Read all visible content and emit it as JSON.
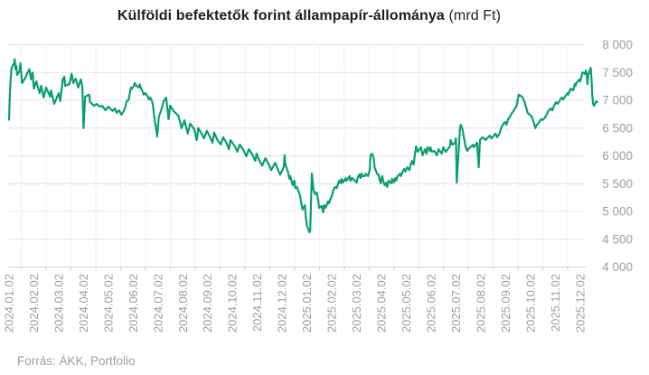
{
  "title": {
    "main": "Külföldi befektetők forint állampapír-állománya",
    "suffix": "(mrd Ft)"
  },
  "footer": {
    "source": "Forrás: ÁKK, Portfolio"
  },
  "chart_data": {
    "type": "line",
    "title": "Külföldi befektetők forint állampapír-állománya (mrd Ft)",
    "xlabel": "",
    "ylabel": "mrd Ft",
    "legend": false,
    "grid": true,
    "ylim": [
      4000,
      8000
    ],
    "y_ticks": [
      4000,
      4500,
      5000,
      5500,
      6000,
      6500,
      7000,
      7500,
      8000
    ],
    "y_tick_labels": [
      "4 000",
      "4 500",
      "5 000",
      "5 500",
      "6 000",
      "6 500",
      "7 000",
      "7 500",
      "8 000"
    ],
    "x_labels": [
      "2024.01.02",
      "2024.02.02",
      "2024.03.02",
      "2024.04.02",
      "2024.05.02",
      "2024.06.02",
      "2024.07.02",
      "2024.08.02",
      "2024.09.02",
      "2024.10.02",
      "2024.11.02",
      "2024.12.02",
      "2025.01.02",
      "2025.02.02",
      "2025.03.02",
      "2025.04.02",
      "2025.05.02",
      "2025.06.02",
      "2025.07.02",
      "2025.08.02",
      "2025.09.02",
      "2025.10.02",
      "2025.11.02",
      "2025.12.02"
    ],
    "colors": {
      "line": "#0aa06a",
      "grid": "#e4e4e4",
      "vgrid": "#f1f1f1",
      "axis": "#cfcfcf",
      "axis_label": "#9e9e9e",
      "title": "#1f1f1f"
    },
    "points": [
      [
        "2024-01-02",
        6650
      ],
      [
        "2024-01-03",
        7100
      ],
      [
        "2024-01-04",
        7380
      ],
      [
        "2024-01-05",
        7580
      ],
      [
        "2024-01-08",
        7660
      ],
      [
        "2024-01-09",
        7740
      ],
      [
        "2024-01-10",
        7560
      ],
      [
        "2024-01-11",
        7620
      ],
      [
        "2024-01-12",
        7455
      ],
      [
        "2024-01-15",
        7530
      ],
      [
        "2024-01-16",
        7667
      ],
      [
        "2024-01-17",
        7490
      ],
      [
        "2024-01-18",
        7310
      ],
      [
        "2024-01-22",
        7400
      ],
      [
        "2024-01-24",
        7475
      ],
      [
        "2024-01-27",
        7560
      ],
      [
        "2024-01-29",
        7375
      ],
      [
        "2024-01-31",
        7500
      ],
      [
        "2024-02-02",
        7210
      ],
      [
        "2024-02-05",
        7340
      ],
      [
        "2024-02-09",
        7130
      ],
      [
        "2024-02-11",
        7260
      ],
      [
        "2024-02-14",
        7050
      ],
      [
        "2024-02-17",
        7230
      ],
      [
        "2024-02-22",
        7065
      ],
      [
        "2024-02-23",
        7175
      ],
      [
        "2024-02-27",
        6935
      ],
      [
        "2024-03-02",
        7130
      ],
      [
        "2024-03-04",
        6985
      ],
      [
        "2024-03-07",
        7375
      ],
      [
        "2024-03-09",
        7425
      ],
      [
        "2024-03-10",
        7260
      ],
      [
        "2024-03-15",
        7290
      ],
      [
        "2024-03-18",
        7475
      ],
      [
        "2024-03-20",
        7310
      ],
      [
        "2024-03-23",
        7390
      ],
      [
        "2024-03-26",
        7230
      ],
      [
        "2024-03-29",
        7375
      ],
      [
        "2024-03-31",
        7260
      ],
      [
        "2024-04-02",
        6500
      ],
      [
        "2024-04-04",
        7066
      ],
      [
        "2024-04-09",
        7100
      ],
      [
        "2024-04-10",
        6966
      ],
      [
        "2024-04-15",
        6901
      ],
      [
        "2024-04-18",
        6935
      ],
      [
        "2024-04-22",
        6885
      ],
      [
        "2024-04-25",
        6901
      ],
      [
        "2024-04-29",
        6820
      ],
      [
        "2024-05-02",
        6885
      ],
      [
        "2024-05-07",
        6808
      ],
      [
        "2024-05-10",
        6853
      ],
      [
        "2024-05-12",
        6775
      ],
      [
        "2024-05-15",
        6820
      ],
      [
        "2024-05-18",
        6742
      ],
      [
        "2024-05-21",
        6808
      ],
      [
        "2024-05-23",
        6885
      ],
      [
        "2024-05-24",
        6966
      ],
      [
        "2024-05-27",
        7017
      ],
      [
        "2024-05-29",
        7180
      ],
      [
        "2024-05-30",
        7230
      ],
      [
        "2024-05-31",
        7210
      ],
      [
        "2024-06-03",
        7260
      ],
      [
        "2024-06-04",
        7310
      ],
      [
        "2024-06-06",
        7260
      ],
      [
        "2024-06-09",
        7230
      ],
      [
        "2024-06-10",
        7290
      ],
      [
        "2024-06-12",
        7210
      ],
      [
        "2024-06-14",
        7147
      ],
      [
        "2024-06-15",
        7100
      ],
      [
        "2024-06-17",
        7130
      ],
      [
        "2024-06-20",
        7066
      ],
      [
        "2024-06-21",
        7017
      ],
      [
        "2024-06-23",
        7050
      ],
      [
        "2024-06-25",
        6985
      ],
      [
        "2024-06-26",
        6935
      ],
      [
        "2024-06-28",
        6690
      ],
      [
        "2024-07-01",
        6350
      ],
      [
        "2024-07-03",
        6700
      ],
      [
        "2024-07-06",
        6825
      ],
      [
        "2024-07-09",
        6985
      ],
      [
        "2024-07-12",
        7050
      ],
      [
        "2024-07-15",
        6660
      ],
      [
        "2024-07-17",
        6905
      ],
      [
        "2024-07-21",
        6808
      ],
      [
        "2024-07-27",
        6725
      ],
      [
        "2024-07-31",
        6500
      ],
      [
        "2024-08-04",
        6640
      ],
      [
        "2024-08-08",
        6400
      ],
      [
        "2024-08-11",
        6580
      ],
      [
        "2024-08-16",
        6480
      ],
      [
        "2024-08-19",
        6285
      ],
      [
        "2024-08-21",
        6500
      ],
      [
        "2024-08-25",
        6400
      ],
      [
        "2024-08-28",
        6315
      ],
      [
        "2024-09-01",
        6450
      ],
      [
        "2024-09-05",
        6335
      ],
      [
        "2024-09-08",
        6235
      ],
      [
        "2024-09-10",
        6420
      ],
      [
        "2024-09-14",
        6285
      ],
      [
        "2024-09-18",
        6205
      ],
      [
        "2024-09-21",
        6335
      ],
      [
        "2024-09-25",
        6235
      ],
      [
        "2024-09-28",
        6120
      ],
      [
        "2024-09-30",
        6285
      ],
      [
        "2024-10-05",
        6170
      ],
      [
        "2024-10-08",
        6075
      ],
      [
        "2024-10-11",
        6205
      ],
      [
        "2024-10-16",
        6090
      ],
      [
        "2024-10-19",
        5990
      ],
      [
        "2024-10-22",
        6120
      ],
      [
        "2024-10-27",
        6010
      ],
      [
        "2024-10-30",
        5910
      ],
      [
        "2024-11-01",
        6040
      ],
      [
        "2024-11-04",
        5930
      ],
      [
        "2024-11-08",
        5825
      ],
      [
        "2024-11-12",
        5960
      ],
      [
        "2024-11-16",
        5845
      ],
      [
        "2024-11-19",
        5745
      ],
      [
        "2024-11-24",
        5875
      ],
      [
        "2024-11-27",
        5765
      ],
      [
        "2024-11-30",
        5660
      ],
      [
        "2024-12-04",
        5795
      ],
      [
        "2024-12-05",
        6010
      ],
      [
        "2024-12-06",
        5840
      ],
      [
        "2024-12-09",
        5715
      ],
      [
        "2024-12-11",
        5585
      ],
      [
        "2024-12-12",
        5635
      ],
      [
        "2024-12-15",
        5470
      ],
      [
        "2024-12-17",
        5553
      ],
      [
        "2024-12-18",
        5420
      ],
      [
        "2024-12-20",
        5440
      ],
      [
        "2024-12-24",
        5280
      ],
      [
        "2024-12-25",
        5180
      ],
      [
        "2024-12-27",
        5035
      ],
      [
        "2024-12-30",
        5114
      ],
      [
        "2024-12-31",
        4900
      ],
      [
        "2025-01-02",
        4740
      ],
      [
        "2025-01-05",
        4626
      ],
      [
        "2025-01-06",
        4658
      ],
      [
        "2025-01-08",
        5683
      ],
      [
        "2025-01-10",
        5390
      ],
      [
        "2025-01-12",
        5310
      ],
      [
        "2025-01-14",
        5340
      ],
      [
        "2025-01-16",
        5180
      ],
      [
        "2025-01-17",
        5065
      ],
      [
        "2025-01-20",
        5097
      ],
      [
        "2025-01-22",
        4984
      ],
      [
        "2025-01-23",
        5114
      ],
      [
        "2025-01-25",
        5065
      ],
      [
        "2025-01-28",
        5180
      ],
      [
        "2025-01-29",
        5146
      ],
      [
        "2025-01-31",
        5227
      ],
      [
        "2025-02-02",
        5280
      ],
      [
        "2025-02-04",
        5390
      ],
      [
        "2025-02-06",
        5440
      ],
      [
        "2025-02-08",
        5420
      ],
      [
        "2025-02-09",
        5470
      ],
      [
        "2025-02-11",
        5553
      ],
      [
        "2025-02-13",
        5505
      ],
      [
        "2025-02-14",
        5585
      ],
      [
        "2025-02-16",
        5520
      ],
      [
        "2025-02-19",
        5602
      ],
      [
        "2025-02-20",
        5553
      ],
      [
        "2025-02-22",
        5585
      ],
      [
        "2025-02-24",
        5635
      ],
      [
        "2025-02-25",
        5553
      ],
      [
        "2025-02-27",
        5602
      ],
      [
        "2025-03-02",
        5520
      ],
      [
        "2025-03-03",
        5585
      ],
      [
        "2025-03-05",
        5667
      ],
      [
        "2025-03-07",
        5602
      ],
      [
        "2025-03-08",
        5683
      ],
      [
        "2025-03-09",
        5635
      ],
      [
        "2025-03-12",
        5635
      ],
      [
        "2025-03-13",
        5680
      ],
      [
        "2025-03-16",
        5635
      ],
      [
        "2025-03-18",
        5745
      ],
      [
        "2025-03-19",
        6010
      ],
      [
        "2025-03-21",
        6040
      ],
      [
        "2025-03-23",
        5960
      ],
      [
        "2025-03-24",
        5795
      ],
      [
        "2025-03-27",
        5680
      ],
      [
        "2025-03-29",
        5665
      ],
      [
        "2025-03-30",
        5585
      ],
      [
        "2025-04-01",
        5505
      ],
      [
        "2025-04-03",
        5635
      ],
      [
        "2025-04-04",
        5553
      ],
      [
        "2025-04-06",
        5470
      ],
      [
        "2025-04-08",
        5520
      ],
      [
        "2025-04-09",
        5440
      ],
      [
        "2025-04-11",
        5553
      ],
      [
        "2025-04-14",
        5505
      ],
      [
        "2025-04-15",
        5585
      ],
      [
        "2025-04-17",
        5520
      ],
      [
        "2025-04-19",
        5602
      ],
      [
        "2025-04-20",
        5553
      ],
      [
        "2025-04-22",
        5635
      ],
      [
        "2025-04-25",
        5680
      ],
      [
        "2025-04-26",
        5635
      ],
      [
        "2025-04-28",
        5715
      ],
      [
        "2025-04-30",
        5765
      ],
      [
        "2025-05-01",
        5715
      ],
      [
        "2025-05-03",
        5795
      ],
      [
        "2025-05-06",
        5745
      ],
      [
        "2025-05-07",
        5825
      ],
      [
        "2025-05-09",
        5910
      ],
      [
        "2025-05-11",
        5845
      ],
      [
        "2025-05-12",
        5960
      ],
      [
        "2025-05-14",
        6170
      ],
      [
        "2025-05-16",
        6073
      ],
      [
        "2025-05-20",
        6155
      ],
      [
        "2025-05-22",
        6010
      ],
      [
        "2025-05-25",
        6120
      ],
      [
        "2025-05-27",
        6040
      ],
      [
        "2025-05-28",
        6155
      ],
      [
        "2025-05-31",
        6090
      ],
      [
        "2025-06-01",
        6155
      ],
      [
        "2025-06-03",
        6073
      ],
      [
        "2025-06-06",
        6090
      ],
      [
        "2025-06-09",
        6010
      ],
      [
        "2025-06-11",
        6120
      ],
      [
        "2025-06-15",
        6040
      ],
      [
        "2025-06-17",
        6155
      ],
      [
        "2025-06-20",
        6073
      ],
      [
        "2025-06-25",
        6170
      ],
      [
        "2025-06-26",
        6285
      ],
      [
        "2025-06-28",
        6200
      ],
      [
        "2025-07-01",
        6235
      ],
      [
        "2025-07-02",
        6315
      ],
      [
        "2025-07-03",
        5520
      ],
      [
        "2025-07-07",
        6500
      ],
      [
        "2025-07-08",
        6560
      ],
      [
        "2025-07-10",
        6480
      ],
      [
        "2025-07-14",
        6155
      ],
      [
        "2025-07-16",
        6090
      ],
      [
        "2025-07-17",
        6120
      ],
      [
        "2025-07-21",
        6170
      ],
      [
        "2025-07-23",
        6200
      ],
      [
        "2025-07-24",
        6155
      ],
      [
        "2025-07-28",
        6235
      ],
      [
        "2025-07-30",
        5795
      ],
      [
        "2025-08-01",
        6285
      ],
      [
        "2025-08-04",
        6335
      ],
      [
        "2025-08-06",
        6315
      ],
      [
        "2025-08-08",
        6285
      ],
      [
        "2025-08-11",
        6335
      ],
      [
        "2025-08-13",
        6365
      ],
      [
        "2025-08-15",
        6315
      ],
      [
        "2025-08-18",
        6365
      ],
      [
        "2025-08-20",
        6400
      ],
      [
        "2025-08-22",
        6335
      ],
      [
        "2025-08-25",
        6400
      ],
      [
        "2025-08-27",
        6500
      ],
      [
        "2025-08-29",
        6560
      ],
      [
        "2025-09-01",
        6610
      ],
      [
        "2025-09-03",
        6560
      ],
      [
        "2025-09-05",
        6660
      ],
      [
        "2025-09-08",
        6725
      ],
      [
        "2025-09-10",
        6775
      ],
      [
        "2025-09-12",
        6820
      ],
      [
        "2025-09-15",
        6885
      ],
      [
        "2025-09-16",
        6935
      ],
      [
        "2025-09-18",
        7100
      ],
      [
        "2025-09-22",
        7066
      ],
      [
        "2025-09-24",
        7017
      ],
      [
        "2025-09-26",
        6935
      ],
      [
        "2025-09-29",
        6775
      ],
      [
        "2025-10-01",
        6742
      ],
      [
        "2025-10-03",
        6725
      ],
      [
        "2025-10-06",
        6610
      ],
      [
        "2025-10-08",
        6500
      ],
      [
        "2025-10-10",
        6560
      ],
      [
        "2025-10-13",
        6610
      ],
      [
        "2025-10-15",
        6660
      ],
      [
        "2025-10-17",
        6645
      ],
      [
        "2025-10-20",
        6690
      ],
      [
        "2025-10-22",
        6742
      ],
      [
        "2025-10-24",
        6808
      ],
      [
        "2025-10-27",
        6853
      ],
      [
        "2025-10-29",
        6820
      ],
      [
        "2025-10-31",
        6901
      ],
      [
        "2025-11-03",
        6966
      ],
      [
        "2025-11-05",
        6935
      ],
      [
        "2025-11-07",
        6985
      ],
      [
        "2025-11-10",
        7050
      ],
      [
        "2025-11-12",
        7017
      ],
      [
        "2025-11-14",
        7066
      ],
      [
        "2025-11-17",
        7130
      ],
      [
        "2025-11-18",
        7100
      ],
      [
        "2025-11-19",
        7147
      ],
      [
        "2025-11-21",
        7210
      ],
      [
        "2025-11-24",
        7180
      ],
      [
        "2025-11-25",
        7230
      ],
      [
        "2025-11-26",
        7293
      ],
      [
        "2025-11-27",
        7260
      ],
      [
        "2025-11-28",
        7310
      ],
      [
        "2025-12-01",
        7375
      ],
      [
        "2025-12-02",
        7340
      ],
      [
        "2025-12-03",
        7390
      ],
      [
        "2025-12-04",
        7455
      ],
      [
        "2025-12-05",
        7503
      ],
      [
        "2025-12-08",
        7472
      ],
      [
        "2025-12-09",
        7537
      ],
      [
        "2025-12-10",
        7480
      ],
      [
        "2025-12-11",
        7290
      ],
      [
        "2025-12-12",
        7455
      ],
      [
        "2025-12-15",
        7585
      ],
      [
        "2025-12-16",
        7375
      ],
      [
        "2025-12-17",
        7066
      ],
      [
        "2025-12-18",
        6935
      ],
      [
        "2025-12-19",
        6901
      ],
      [
        "2025-12-22",
        6985
      ],
      [
        "2025-12-23",
        6966
      ]
    ]
  }
}
